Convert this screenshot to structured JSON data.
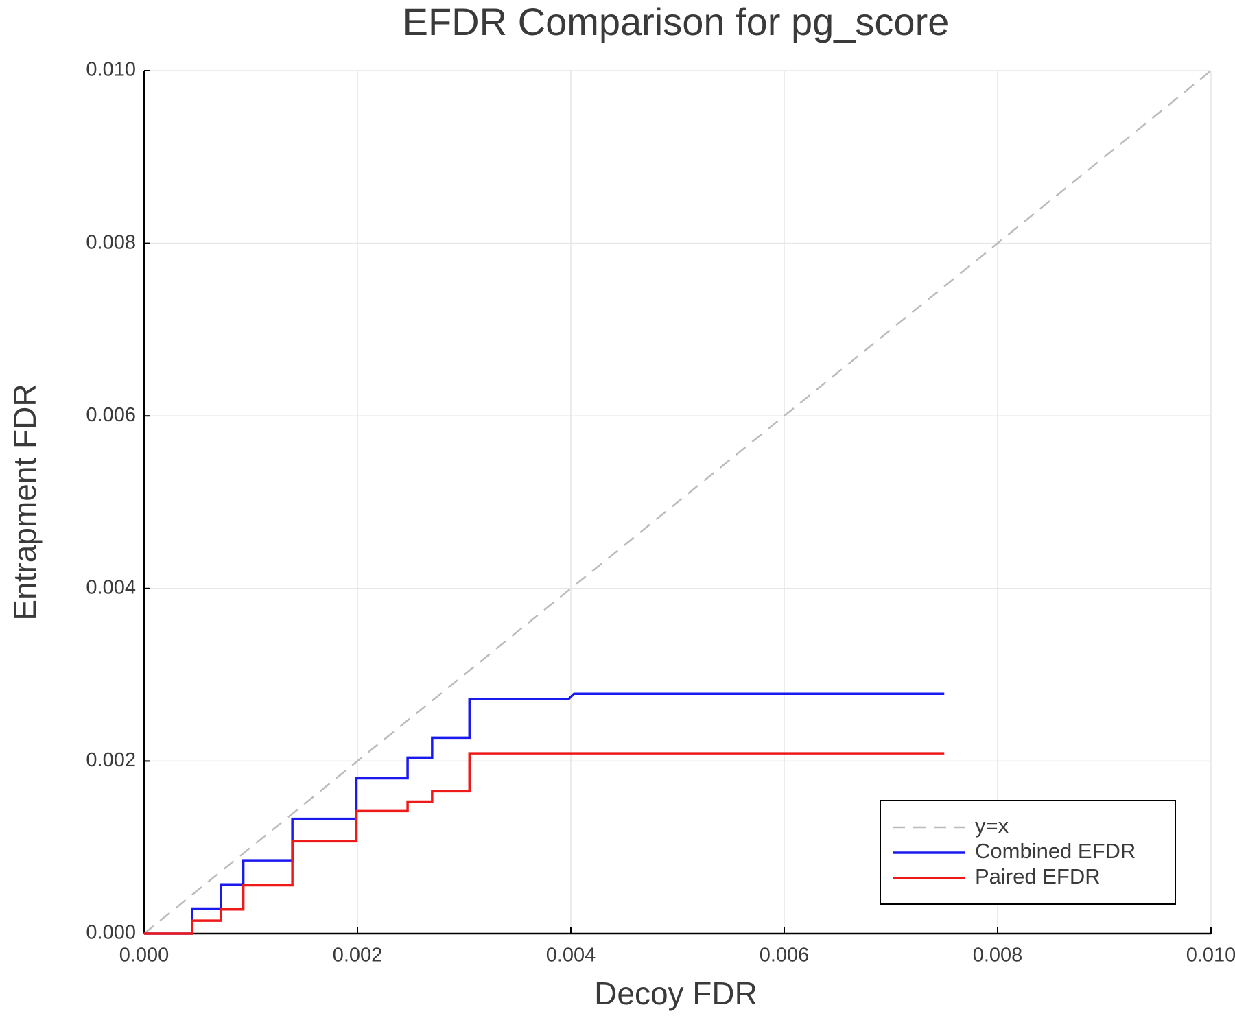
{
  "chart_data": {
    "type": "line",
    "title": "EFDR Comparison for pg_score",
    "xlabel": "Decoy FDR",
    "ylabel": "Entrapment FDR",
    "x": [
      0,
      0.00045,
      0.00045,
      0.00072,
      0.00072,
      0.00093,
      0.00093,
      0.00139,
      0.00139,
      0.00199,
      0.00199,
      0.00247,
      0.00247,
      0.0027,
      0.0027,
      0.00305,
      0.00305,
      0.00398,
      0.00403,
      0.0075
    ],
    "series": [
      {
        "name": "y=x",
        "color": "#bbbbbb",
        "dashed": true,
        "x": [
          0,
          0.01
        ],
        "values": [
          0,
          0.01
        ]
      },
      {
        "name": "Combined EFDR",
        "color": "#1a1aee",
        "values": [
          0,
          0,
          0.00029,
          0.00029,
          0.00057,
          0.00057,
          0.00085,
          0.00085,
          0.00133,
          0.00133,
          0.0018,
          0.0018,
          0.00204,
          0.00204,
          0.00227,
          0.00227,
          0.00272,
          0.00272,
          0.00278,
          0.00278
        ]
      },
      {
        "name": "Paired EFDR",
        "color": "#ee1a1a",
        "values": [
          0,
          0,
          0.00015,
          0.00015,
          0.00028,
          0.00028,
          0.00056,
          0.00056,
          0.00107,
          0.00107,
          0.00142,
          0.00142,
          0.00153,
          0.00153,
          0.00165,
          0.00165,
          0.00209,
          0.00209,
          0.00209,
          0.00209
        ]
      }
    ],
    "xlim": [
      0,
      0.01
    ],
    "ylim": [
      0,
      0.01
    ],
    "xticks": [
      {
        "value": 0,
        "label": "0.000"
      },
      {
        "value": 0.002,
        "label": "0.002"
      },
      {
        "value": 0.004,
        "label": "0.004"
      },
      {
        "value": 0.006,
        "label": "0.006"
      },
      {
        "value": 0.008,
        "label": "0.008"
      },
      {
        "value": 0.01,
        "label": "0.010"
      }
    ],
    "yticks": [
      {
        "value": 0,
        "label": "0.000"
      },
      {
        "value": 0.002,
        "label": "0.002"
      },
      {
        "value": 0.004,
        "label": "0.004"
      },
      {
        "value": 0.006,
        "label": "0.006"
      },
      {
        "value": 0.008,
        "label": "0.008"
      },
      {
        "value": 0.01,
        "label": "0.010"
      }
    ],
    "grid": true,
    "legend": "lower right"
  }
}
